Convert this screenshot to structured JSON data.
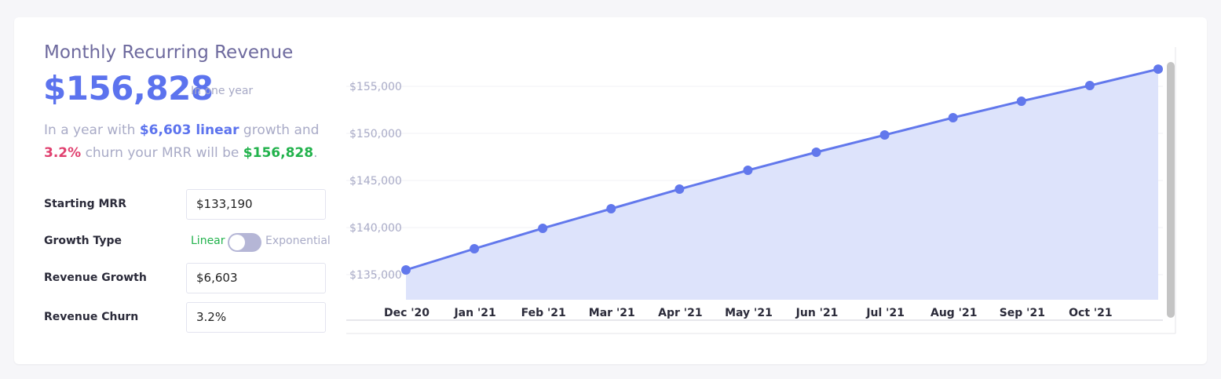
{
  "header": {
    "title": "Monthly Recurring Revenue",
    "value": "$156,828",
    "note": "In one year"
  },
  "summary": {
    "part1": "In a year with",
    "growth": "$6,603 linear",
    "part2": "growth and",
    "churn": "3.2%",
    "part3": "churn your MRR will be",
    "result": "$156,828",
    "end": "."
  },
  "form": {
    "starting_mrr": {
      "label": "Starting MRR",
      "value": "$133,190"
    },
    "growth_type": {
      "label": "Growth Type",
      "left": "Linear",
      "right": "Exponential"
    },
    "revenue_growth": {
      "label": "Revenue Growth",
      "value": "$6,603"
    },
    "revenue_churn": {
      "label": "Revenue Churn",
      "value": "3.2%"
    }
  },
  "chart_data": {
    "type": "area",
    "categories": [
      "Dec '20",
      "Jan '21",
      "Feb '21",
      "Mar '21",
      "Apr '21",
      "May '21",
      "Jun '21",
      "Jul '21",
      "Aug '21",
      "Sep '21",
      "Oct '21",
      null
    ],
    "values": [
      135500,
      137750,
      139920,
      142000,
      144080,
      146080,
      148000,
      149830,
      151670,
      153420,
      155080,
      156828
    ],
    "color": "#6278ec",
    "fill": "#dde3fb",
    "ylim": [
      132333,
      159167
    ],
    "yticks": [
      {
        "value": 135000,
        "label": "$135,000"
      },
      {
        "value": 140000,
        "label": "$140,000"
      },
      {
        "value": 145000,
        "label": "$145,000"
      },
      {
        "value": 150000,
        "label": "$150,000"
      },
      {
        "value": 155000,
        "label": "$155,000"
      }
    ],
    "grid": true
  }
}
